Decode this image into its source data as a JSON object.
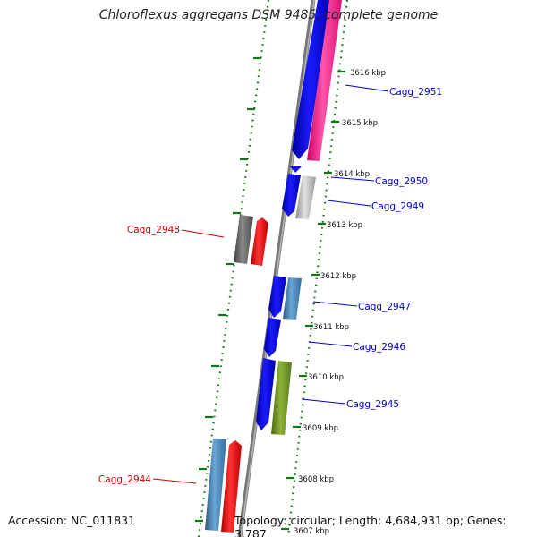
{
  "title": "Chloroflexus aggregans DSM 9485, complete genome",
  "footer": {
    "accession": "Accession: NC_011831",
    "topology": "Topology: circular; Length: 4,684,931 bp; Genes: 3,787"
  },
  "ticks": [
    "3616 kbp",
    "3615 kbp",
    "3614 kbp",
    "3613 kbp",
    "3612 kbp",
    "3611 kbp",
    "3610 kbp",
    "3609 kbp",
    "3608 kbp",
    "3607 kbp"
  ],
  "gene_labels": [
    {
      "text": "Cagg_2951",
      "color": "#0000cc"
    },
    {
      "text": "Cagg_2950",
      "color": "#0000cc"
    },
    {
      "text": "Cagg_2949",
      "color": "#0000cc"
    },
    {
      "text": "Cagg_2948",
      "color": "#cc0000"
    },
    {
      "text": "Cagg_2947",
      "color": "#0000cc"
    },
    {
      "text": "Cagg_2946",
      "color": "#0000cc"
    },
    {
      "text": "Cagg_2945",
      "color": "#0000cc"
    },
    {
      "text": "Cagg_2944",
      "color": "#cc0000"
    }
  ],
  "colors": {
    "backbone": "#888888",
    "tick": "#117711",
    "blue": "#1010e0",
    "pink": "#ff3399",
    "steel": "#4682b4",
    "gray": "#b0b0b0",
    "darkgray": "#666666",
    "red": "#ee1111",
    "olive": "#6b8e23"
  }
}
